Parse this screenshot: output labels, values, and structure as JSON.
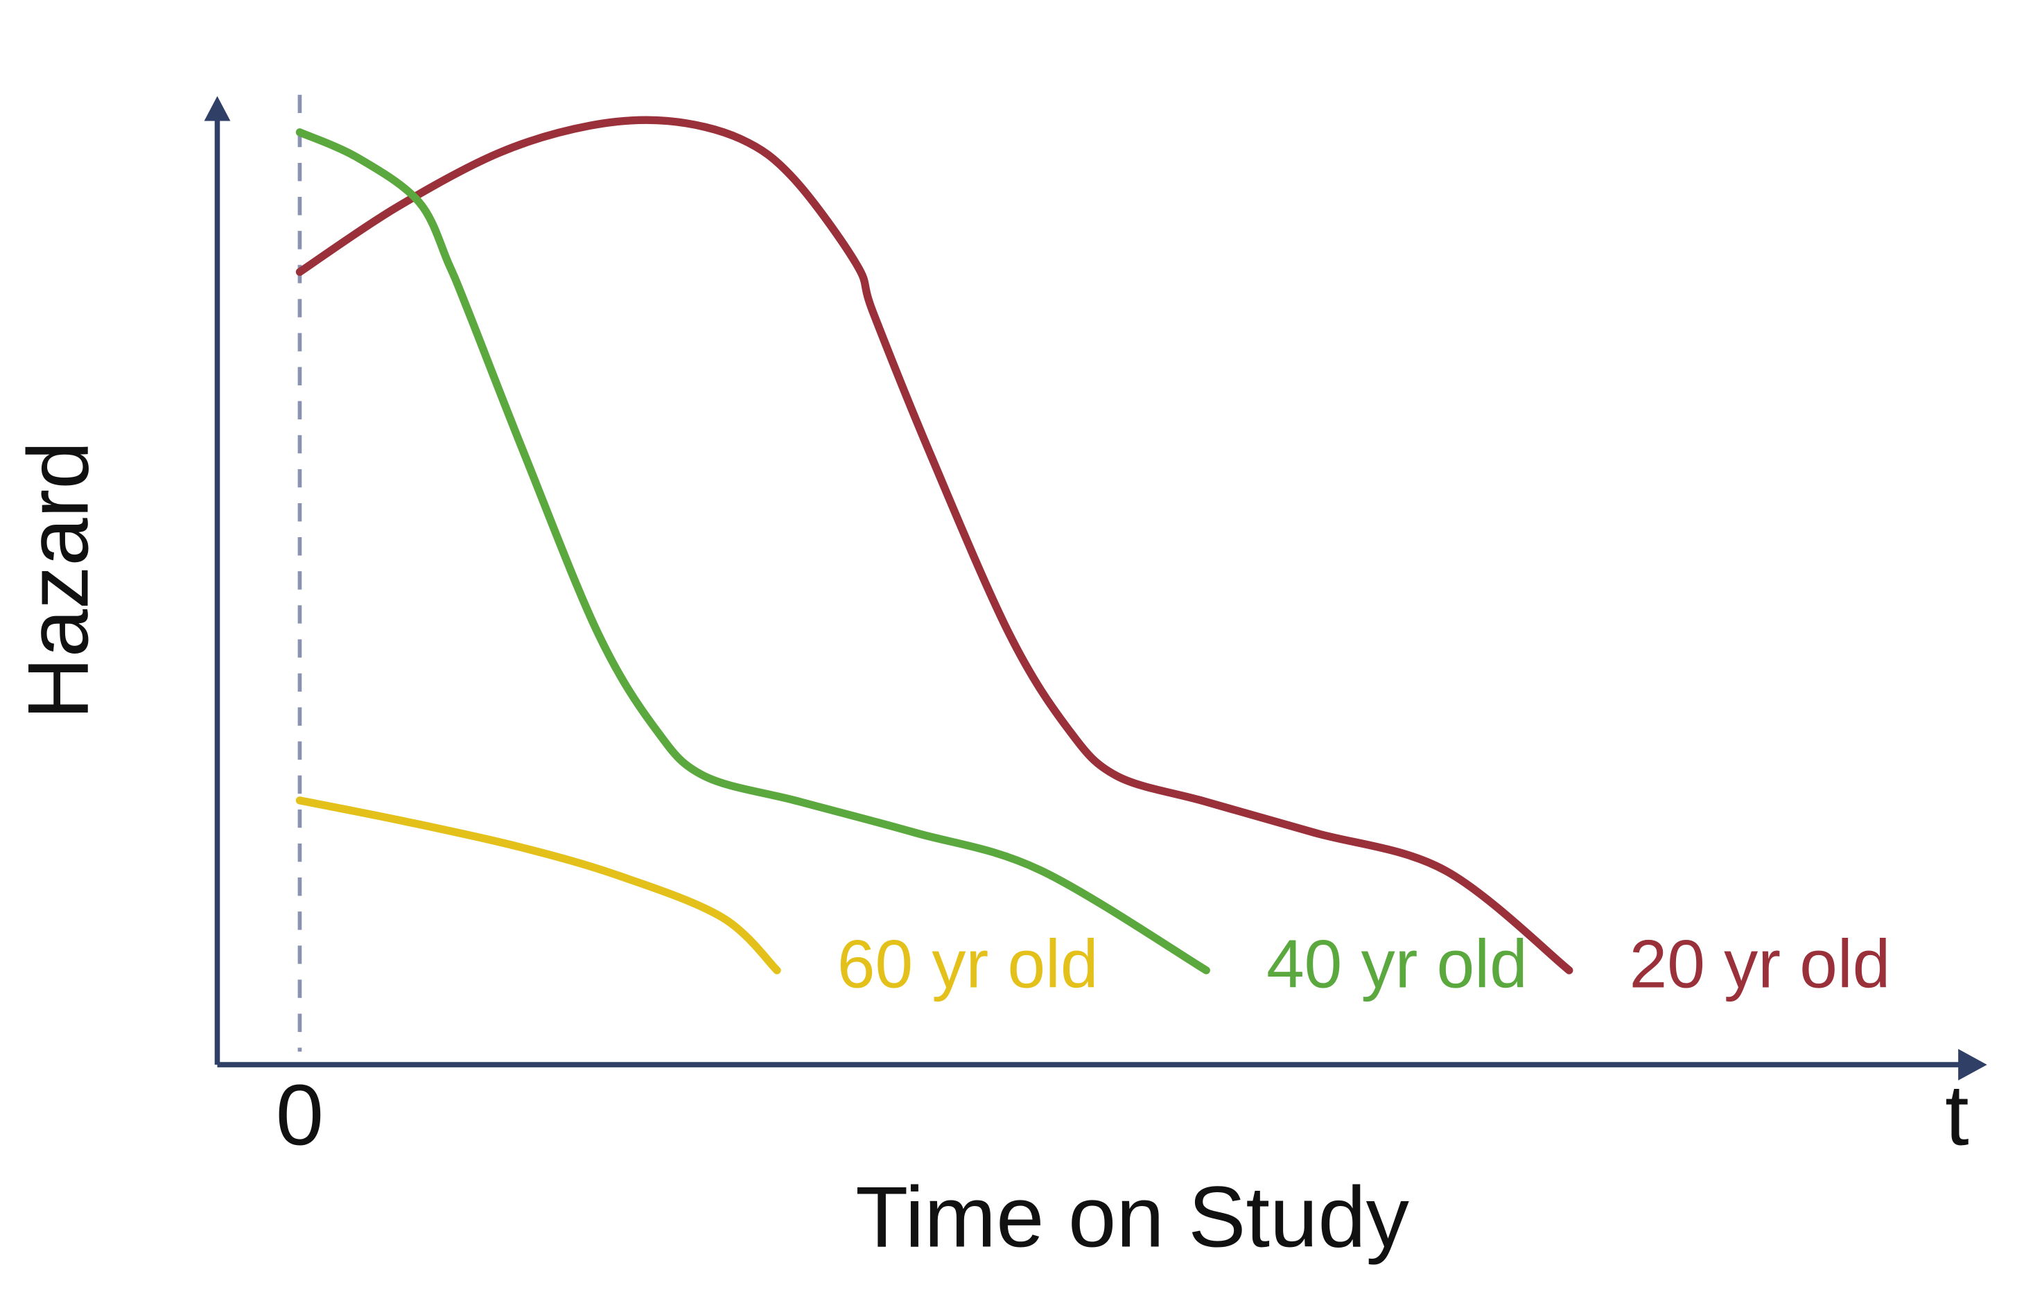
{
  "chart_data": {
    "type": "line",
    "title": "",
    "xlabel": "Time on Study",
    "ylabel": "Hazard",
    "xlim": [
      0,
      1
    ],
    "ylim": [
      0,
      1
    ],
    "grid": false,
    "legend": "inline labels at line ends",
    "x_ticks": [
      {
        "value": 0,
        "label": "0"
      },
      {
        "value": 1,
        "label": "t"
      }
    ],
    "baseline_guide_x": 0,
    "series": [
      {
        "name": "20 yr old",
        "color": "#9a3039",
        "x": [
          0.0,
          0.058,
          0.12,
          0.175,
          0.222,
          0.266,
          0.298,
          0.336,
          0.346,
          0.381,
          0.428,
          0.464,
          0.493,
          0.546,
          0.612,
          0.691,
          0.766
        ],
        "y": [
          0.84,
          0.908,
          0.966,
          0.995,
          1.0,
          0.981,
          0.939,
          0.848,
          0.797,
          0.645,
          0.457,
          0.355,
          0.306,
          0.279,
          0.246,
          0.206,
          0.1
        ]
      },
      {
        "name": "40 yr old",
        "color": "#5aa83e",
        "x": [
          0.0,
          0.035,
          0.072,
          0.09,
          0.102,
          0.136,
          0.18,
          0.215,
          0.244,
          0.301,
          0.371,
          0.447,
          0.547
        ],
        "y": [
          0.988,
          0.961,
          0.914,
          0.848,
          0.797,
          0.645,
          0.457,
          0.355,
          0.306,
          0.279,
          0.246,
          0.206,
          0.1
        ]
      },
      {
        "name": "60 yr old",
        "color": "#e3c11a",
        "x": [
          0.0,
          0.063,
          0.132,
          0.193,
          0.255,
          0.288
        ],
        "y": [
          0.28,
          0.258,
          0.231,
          0.2,
          0.156,
          0.1
        ]
      }
    ]
  }
}
